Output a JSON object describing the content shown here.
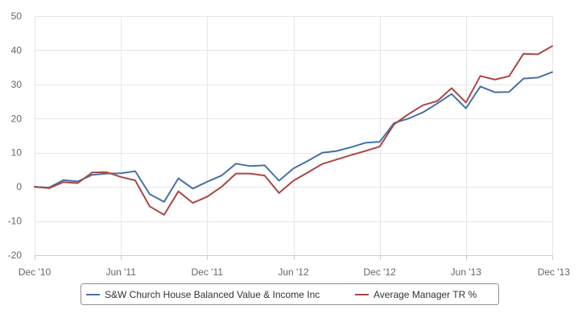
{
  "chart_data": {
    "type": "line",
    "title": "",
    "xlabel": "",
    "ylabel": "",
    "ylim": [
      -20,
      50
    ],
    "yticks": [
      -20,
      -10,
      0,
      10,
      20,
      30,
      40,
      50
    ],
    "xlim": [
      "2010-12",
      "2013-12"
    ],
    "xtick_labels": [
      "Dec '10",
      "Jun '11",
      "Dec '11",
      "Jun '12",
      "Dec '12",
      "Jun '13",
      "Dec '13"
    ],
    "grid": true,
    "legend_position": "bottom",
    "x": [
      "2010-12",
      "2011-01",
      "2011-02",
      "2011-03",
      "2011-04",
      "2011-05",
      "2011-06",
      "2011-07",
      "2011-08",
      "2011-09",
      "2011-10",
      "2011-11",
      "2011-12",
      "2012-01",
      "2012-02",
      "2012-03",
      "2012-04",
      "2012-05",
      "2012-06",
      "2012-07",
      "2012-08",
      "2012-09",
      "2012-10",
      "2012-11",
      "2012-12",
      "2013-01",
      "2013-02",
      "2013-03",
      "2013-04",
      "2013-05",
      "2013-06",
      "2013-07",
      "2013-08",
      "2013-09",
      "2013-10",
      "2013-11",
      "2013-12"
    ],
    "series": [
      {
        "name": "S&W Church House Balanced Value & Income Inc",
        "color": "#4572a7",
        "values": [
          0,
          -0.2,
          2.0,
          1.6,
          3.5,
          3.9,
          4.0,
          4.6,
          -2.1,
          -4.4,
          2.5,
          -0.5,
          1.5,
          3.3,
          6.8,
          6.1,
          6.3,
          1.8,
          5.4,
          7.6,
          10.0,
          10.5,
          11.6,
          12.9,
          13.2,
          18.7,
          20.0,
          21.8,
          24.4,
          27.2,
          23.0,
          29.4,
          27.7,
          27.8,
          31.7,
          32.0,
          33.6
        ]
      },
      {
        "name": "Average Manager TR %",
        "color": "#aa4643",
        "values": [
          0,
          -0.4,
          1.4,
          1.1,
          4.2,
          4.3,
          2.9,
          1.9,
          -5.7,
          -8.2,
          -1.3,
          -4.7,
          -2.9,
          0,
          3.9,
          3.9,
          3.3,
          -1.8,
          1.8,
          4.2,
          6.7,
          8.0,
          9.3,
          10.5,
          11.8,
          18.3,
          21.3,
          23.9,
          25.1,
          28.9,
          24.7,
          32.5,
          31.4,
          32.4,
          39.0,
          38.8,
          41.2
        ]
      }
    ]
  }
}
